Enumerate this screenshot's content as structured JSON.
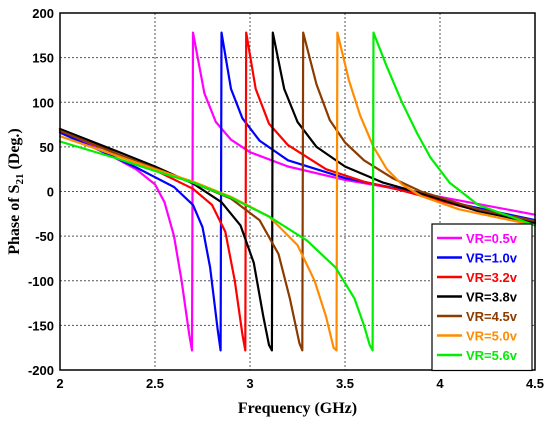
{
  "chart_data": {
    "type": "line",
    "title": "",
    "xlabel": "Frequency (GHz)",
    "ylabel_main": "Phase of S",
    "ylabel_sub": "21",
    "ylabel_tail": " (Deg.)",
    "xlim": [
      2,
      4.5
    ],
    "ylim": [
      -200,
      200
    ],
    "x_ticks": [
      2,
      2.5,
      3,
      3.5,
      4,
      4.5
    ],
    "x_tick_labels": [
      "2",
      "2.5",
      "3",
      "3.5",
      "4",
      "4.5"
    ],
    "y_ticks": [
      -200,
      -150,
      -100,
      -50,
      0,
      50,
      100,
      150,
      200
    ],
    "y_tick_labels": [
      "-200",
      "-150",
      "-100",
      "-50",
      "0",
      "50",
      "100",
      "150",
      "200"
    ],
    "grid": true,
    "legend_position": "bottom-right",
    "series": [
      {
        "name": "VR=0.5v",
        "color": "#ff00ff",
        "x": [
          2.0,
          2.2,
          2.4,
          2.5,
          2.55,
          2.6,
          2.64,
          2.68,
          2.695,
          2.7,
          2.76,
          2.82,
          2.9,
          3.0,
          3.2,
          3.5,
          3.8,
          4.1,
          4.5
        ],
        "y": [
          68,
          48,
          25,
          8,
          -12,
          -50,
          -100,
          -160,
          -178,
          178,
          110,
          78,
          58,
          44,
          28,
          13,
          2,
          -10,
          -26
        ]
      },
      {
        "name": "VR=1.0v",
        "color": "#0000ff",
        "x": [
          2.0,
          2.2,
          2.4,
          2.5,
          2.6,
          2.7,
          2.75,
          2.79,
          2.83,
          2.845,
          2.85,
          2.9,
          2.96,
          3.05,
          3.2,
          3.5,
          3.8,
          4.1,
          4.5
        ],
        "y": [
          66,
          47,
          27,
          16,
          5,
          -15,
          -40,
          -85,
          -155,
          -178,
          178,
          115,
          82,
          57,
          35,
          15,
          2,
          -14,
          -32
        ]
      },
      {
        "name": "VR=3.2v",
        "color": "#ff0000",
        "x": [
          2.0,
          2.3,
          2.5,
          2.7,
          2.8,
          2.87,
          2.92,
          2.96,
          2.975,
          2.98,
          3.03,
          3.1,
          3.2,
          3.4,
          3.6,
          3.8,
          4.1,
          4.5
        ],
        "y": [
          70,
          42,
          24,
          3,
          -15,
          -45,
          -100,
          -160,
          -178,
          178,
          115,
          76,
          52,
          25,
          11,
          1,
          -16,
          -36
        ]
      },
      {
        "name": "VR=3.8v",
        "color": "#000000",
        "x": [
          2.0,
          2.3,
          2.5,
          2.7,
          2.85,
          2.95,
          3.02,
          3.07,
          3.1,
          3.115,
          3.12,
          3.18,
          3.25,
          3.35,
          3.5,
          3.7,
          3.9,
          4.2,
          4.5
        ],
        "y": [
          70,
          45,
          28,
          9,
          -12,
          -38,
          -80,
          -140,
          -172,
          -178,
          178,
          115,
          78,
          50,
          28,
          10,
          -2,
          -22,
          -35
        ]
      },
      {
        "name": "VR=4.5v",
        "color": "#8b3a00",
        "x": [
          2.0,
          2.3,
          2.5,
          2.7,
          2.9,
          3.05,
          3.15,
          3.21,
          3.26,
          3.275,
          3.28,
          3.35,
          3.42,
          3.5,
          3.6,
          3.75,
          3.9,
          4.2,
          4.5
        ],
        "y": [
          68,
          42,
          26,
          10,
          -8,
          -32,
          -70,
          -120,
          -170,
          -178,
          178,
          120,
          80,
          55,
          35,
          15,
          0,
          -20,
          -33
        ]
      },
      {
        "name": "VR=5.0v",
        "color": "#ff8c00",
        "x": [
          2.0,
          2.3,
          2.5,
          2.7,
          2.9,
          3.1,
          3.25,
          3.34,
          3.4,
          3.44,
          3.455,
          3.46,
          3.52,
          3.58,
          3.65,
          3.72,
          3.8,
          3.9,
          4.1,
          4.5
        ],
        "y": [
          62,
          40,
          25,
          11,
          -6,
          -28,
          -60,
          -100,
          -140,
          -175,
          -178,
          178,
          125,
          85,
          50,
          25,
          8,
          -5,
          -20,
          -38
        ]
      },
      {
        "name": "VR=5.6v",
        "color": "#00ee00",
        "x": [
          2.0,
          2.3,
          2.5,
          2.7,
          2.9,
          3.1,
          3.3,
          3.45,
          3.55,
          3.6,
          3.63,
          3.645,
          3.65,
          3.72,
          3.8,
          3.88,
          3.95,
          4.05,
          4.2,
          4.5
        ],
        "y": [
          56,
          37,
          23,
          10,
          -7,
          -28,
          -55,
          -85,
          -120,
          -150,
          -172,
          -178,
          178,
          140,
          100,
          65,
          38,
          10,
          -15,
          -38
        ]
      }
    ]
  }
}
